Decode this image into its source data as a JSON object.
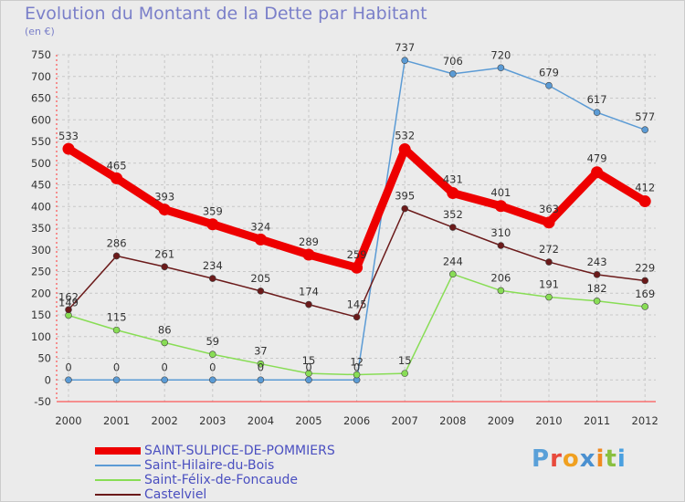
{
  "header": {
    "title": "Evolution du Montant de la Dette par Habitant",
    "subtitle": "(en €)"
  },
  "brand": {
    "text": "Proxiti",
    "colors": [
      "#5aa0d8",
      "#e84a3c",
      "#f0a020",
      "#4a90d0",
      "#f08a20",
      "#8ac040",
      "#4aa0e0"
    ]
  },
  "chart_data": {
    "type": "line",
    "x": [
      2000,
      2001,
      2002,
      2003,
      2004,
      2005,
      2006,
      2007,
      2008,
      2009,
      2010,
      2011,
      2012
    ],
    "x_tick_labels": [
      "2000",
      "2001",
      "2002",
      "2003",
      "2004",
      "2005",
      "2006",
      "2007",
      "2008",
      "2009",
      "2010",
      "2011",
      "2012"
    ],
    "ylim": [
      -50,
      750
    ],
    "y_ticks": [
      -50,
      0,
      50,
      100,
      150,
      200,
      250,
      300,
      350,
      400,
      450,
      500,
      550,
      600,
      650,
      700,
      750
    ],
    "grid": "horizontal dashed",
    "legend_position": "bottom-left",
    "series": [
      {
        "name": "SAINT-SULPICE-DE-POMMIERS",
        "color": "#ee0000",
        "values": [
          533,
          465,
          393,
          359,
          324,
          289,
          259,
          532,
          431,
          401,
          363,
          479,
          412
        ],
        "labels": [
          "533",
          "465",
          "393",
          "359",
          "324",
          "289",
          "259",
          "532",
          "431",
          "401",
          "363",
          "479",
          "412"
        ]
      },
      {
        "name": "Saint-Hilaire-du-Bois",
        "color": "#5b9bd5",
        "values": [
          0,
          0,
          0,
          0,
          0,
          0,
          0,
          737,
          706,
          720,
          679,
          617,
          577
        ],
        "labels": [
          "0",
          "0",
          "0",
          "0",
          "0",
          "0",
          "0",
          "737",
          "706",
          "720",
          "679",
          "617",
          "577"
        ]
      },
      {
        "name": "Saint-Félix-de-Foncaude",
        "color": "#88dd55",
        "values": [
          149,
          115,
          86,
          59,
          37,
          15,
          12,
          15,
          244,
          206,
          191,
          182,
          169
        ],
        "labels": [
          "149",
          "115",
          "86",
          "59",
          "37",
          "15",
          "12",
          "15",
          "244",
          "206",
          "191",
          "182",
          "169"
        ]
      },
      {
        "name": "Castelviel",
        "color": "#6b1a1a",
        "values": [
          162,
          286,
          261,
          234,
          205,
          174,
          145,
          395,
          352,
          310,
          272,
          243,
          229
        ],
        "labels": [
          "162",
          "286",
          "261",
          "234",
          "205",
          "174",
          "145",
          "395",
          "352",
          "310",
          "272",
          "243",
          "229"
        ]
      }
    ]
  }
}
